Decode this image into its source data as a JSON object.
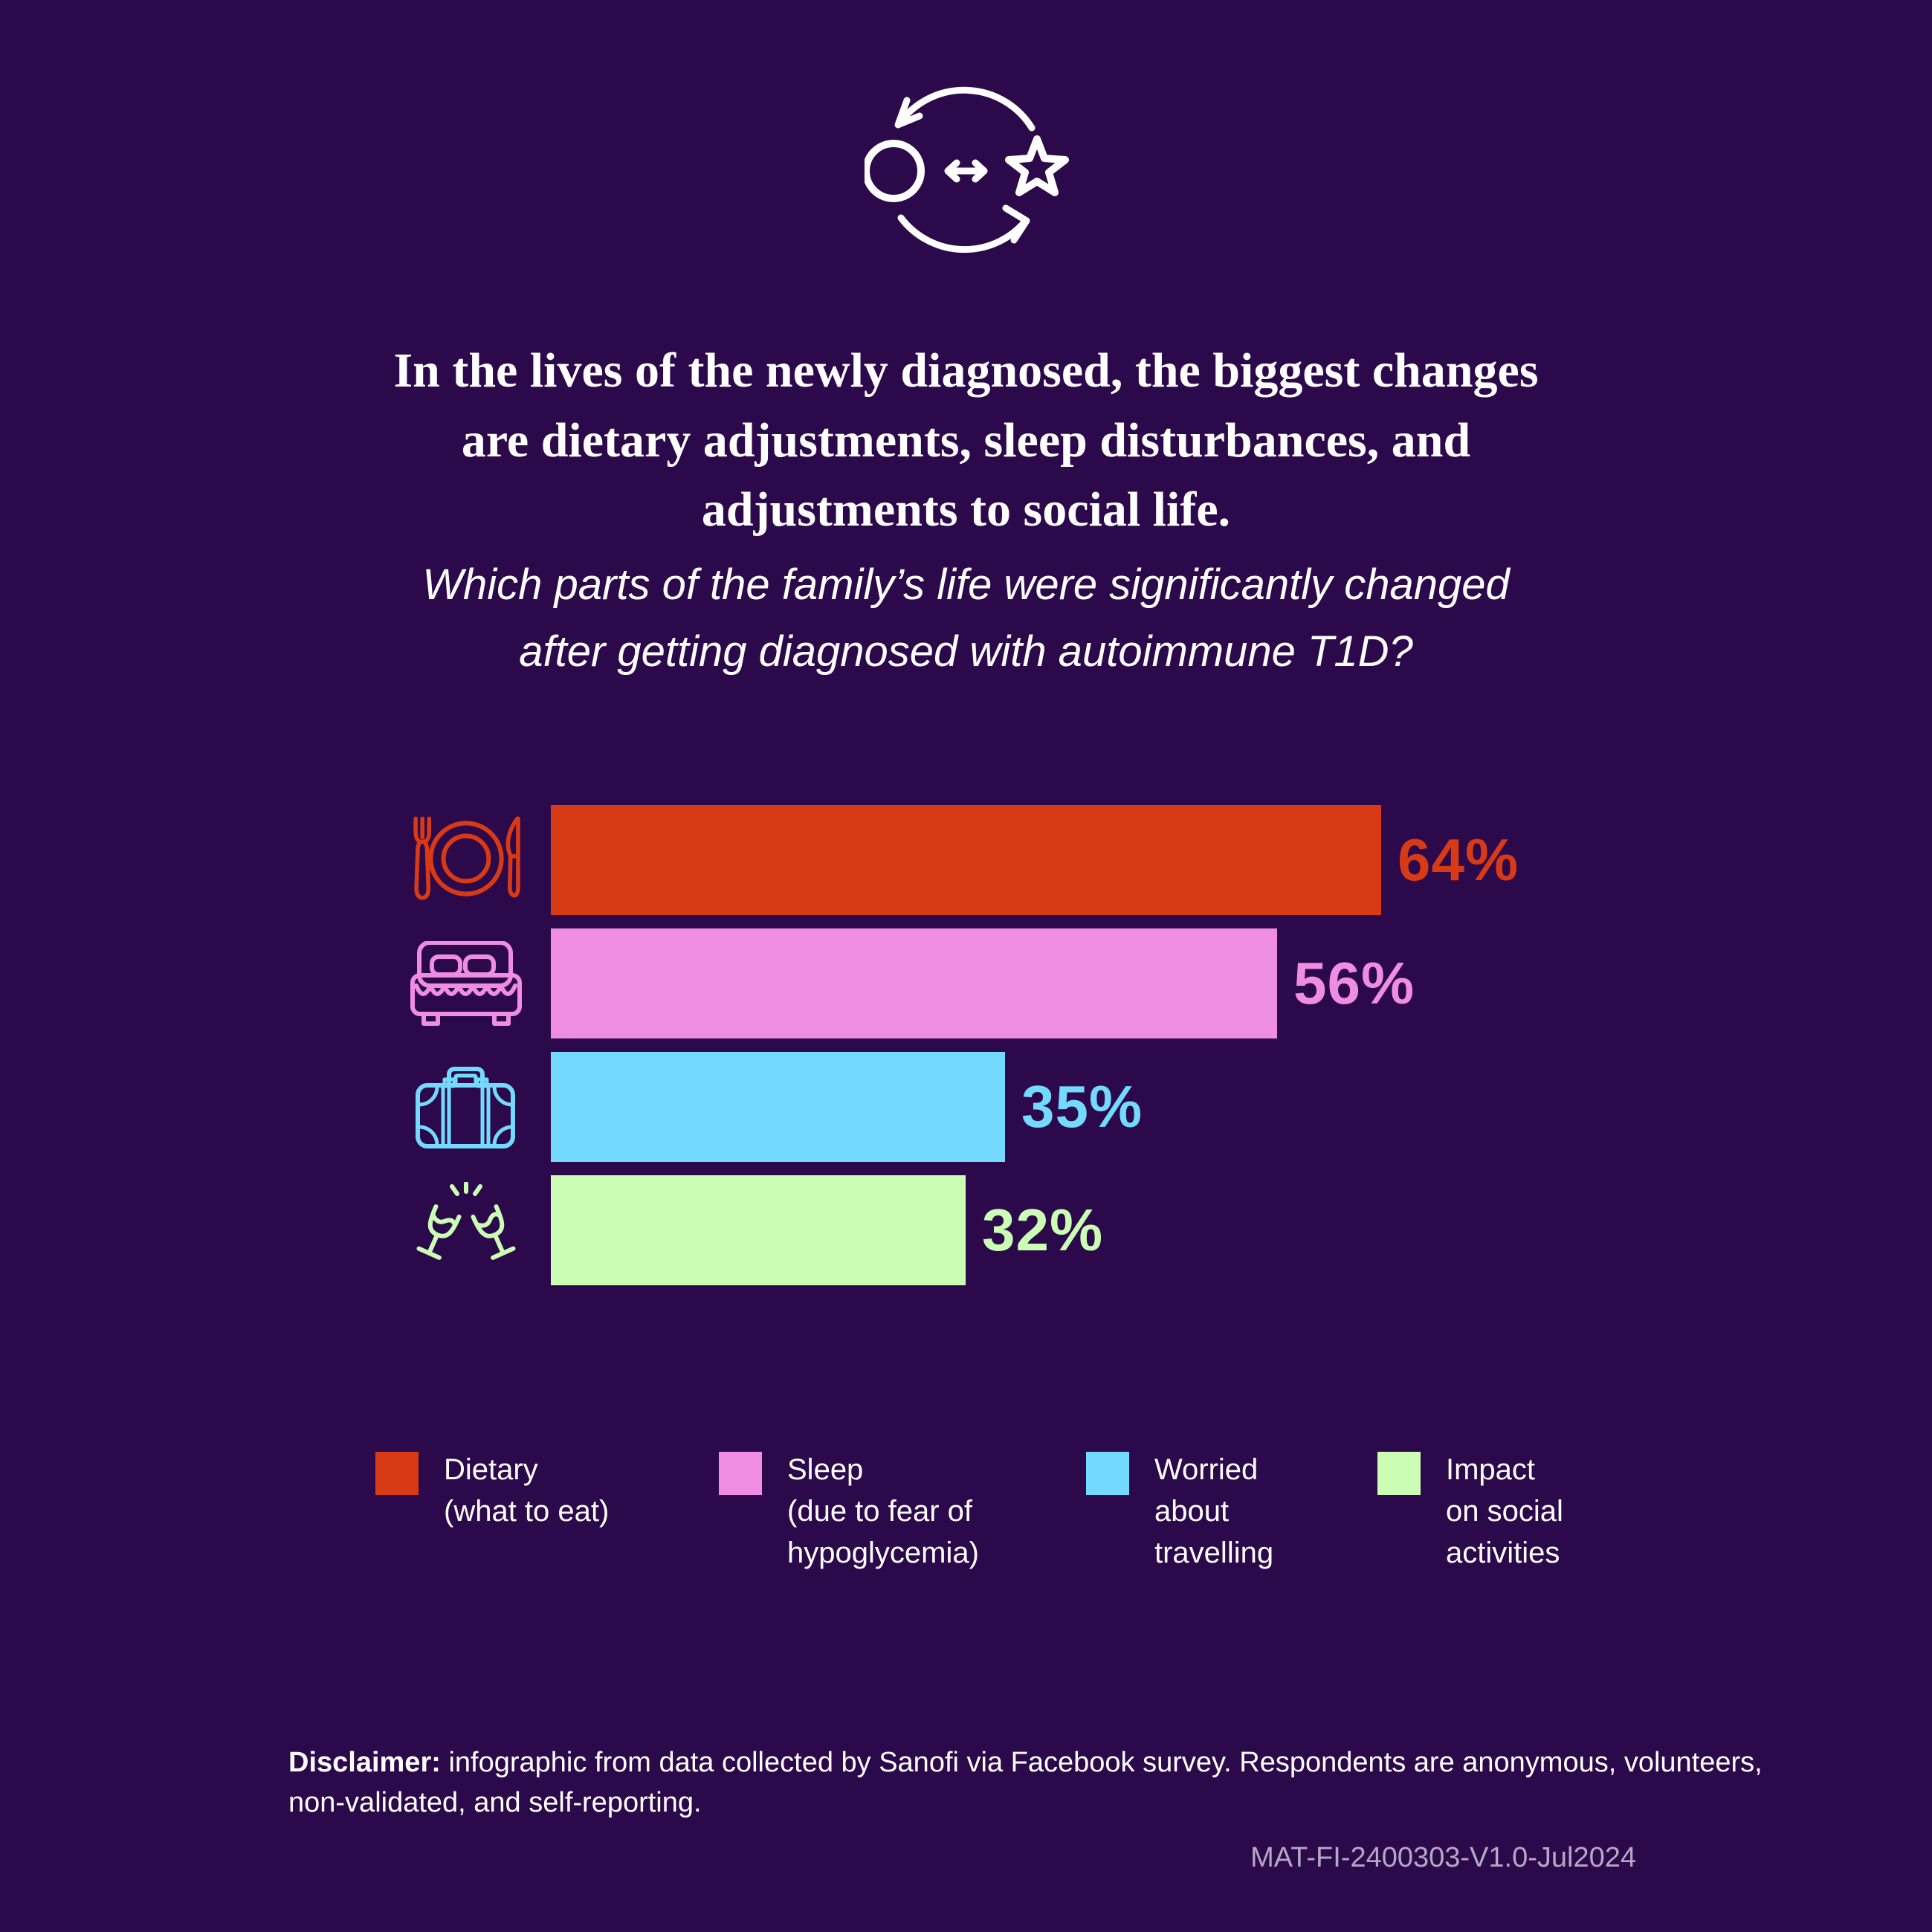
{
  "colors": {
    "background": "#2c094b",
    "text": "#ffffff",
    "code_text": "#b4a8c6"
  },
  "header": {
    "icon": "change-exchange-icon",
    "title_lines": [
      "In the lives of the newly diagnosed, the biggest changes",
      "are dietary adjustments, sleep disturbances, and",
      "adjustments to social life."
    ],
    "subtitle_lines": [
      "Which parts of the family’s life were significantly changed",
      "after getting diagnosed with autoimmune T1D?"
    ]
  },
  "chart_data": {
    "type": "bar",
    "orientation": "horizontal",
    "categories": [
      "Dietary (what to eat)",
      "Sleep (due to fear of hypoglycemia)",
      "Worried about travelling",
      "Impact on social activities"
    ],
    "values": [
      64,
      56,
      35,
      32
    ],
    "value_labels": [
      "64%",
      "56%",
      "35%",
      "32%"
    ],
    "bar_colors": [
      "#d93a16",
      "#ef8de2",
      "#73dafd",
      "#ccfdb5"
    ],
    "icons": [
      "dining-icon",
      "bed-icon",
      "suitcase-icon",
      "champagne-toast-icon"
    ],
    "xlim": [
      0,
      100
    ],
    "grid": false,
    "legend_position": "bottom"
  },
  "legend": {
    "items": [
      {
        "label_lines": [
          "Dietary",
          "(what to eat)"
        ],
        "color": "#d93a16"
      },
      {
        "label_lines": [
          "Sleep",
          "(due to fear of",
          "hypoglycemia)"
        ],
        "color": "#ef8de2"
      },
      {
        "label_lines": [
          "Worried",
          "about",
          "travelling"
        ],
        "color": "#73dafd"
      },
      {
        "label_lines": [
          "Impact",
          "on social",
          "activities"
        ],
        "color": "#ccfdb5"
      }
    ]
  },
  "footer": {
    "disclaimer_label": "Disclaimer:",
    "disclaimer_text": " infographic from data collected by Sanofi via Facebook survey. Respondents are anonymous, volunteers, non-validated, and self-reporting.",
    "code": "MAT-FI-2400303-V1.0-Jul2024"
  }
}
